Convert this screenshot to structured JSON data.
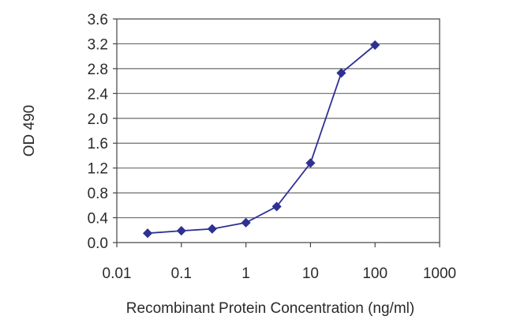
{
  "chart_data": {
    "type": "line",
    "title": "",
    "xlabel": "Recombinant Protein Concentration (ng/ml)",
    "ylabel": "OD 490",
    "xscale": "log",
    "xlim": [
      0.01,
      1000
    ],
    "ylim": [
      0.0,
      3.6
    ],
    "grid": "horizontal",
    "x_tick_labels": [
      "0.01",
      "0.1",
      "1",
      "10",
      "100",
      "1000"
    ],
    "y_tick_labels": [
      "0.0",
      "0.4",
      "0.8",
      "1.2",
      "1.6",
      "2.0",
      "2.4",
      "2.8",
      "3.2",
      "3.6"
    ],
    "series": [
      {
        "color": "#2e3192",
        "marker": "diamond",
        "x": [
          0.03,
          0.1,
          0.3,
          1,
          3,
          10,
          30,
          100
        ],
        "y": [
          0.15,
          0.19,
          0.22,
          0.32,
          0.58,
          1.28,
          2.73,
          3.18
        ]
      }
    ]
  }
}
